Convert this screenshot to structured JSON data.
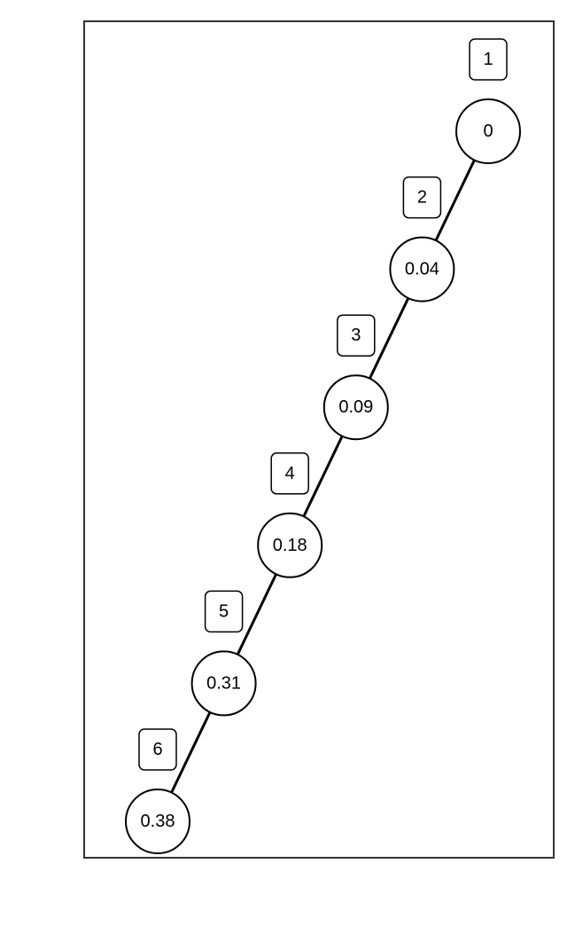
{
  "colors": {
    "line": "#000000",
    "frame": "#333333",
    "node_fill": "#ffffff"
  },
  "nodes": [
    {
      "id": "1",
      "value": "0"
    },
    {
      "id": "2",
      "value": "0.04"
    },
    {
      "id": "3",
      "value": "0.09"
    },
    {
      "id": "4",
      "value": "0.18"
    },
    {
      "id": "5",
      "value": "0.31"
    },
    {
      "id": "6",
      "value": "0.38"
    }
  ],
  "edges": [
    {
      "from": "1",
      "to": "2"
    },
    {
      "from": "2",
      "to": "3"
    },
    {
      "from": "3",
      "to": "4"
    },
    {
      "from": "4",
      "to": "5"
    },
    {
      "from": "5",
      "to": "6"
    }
  ]
}
